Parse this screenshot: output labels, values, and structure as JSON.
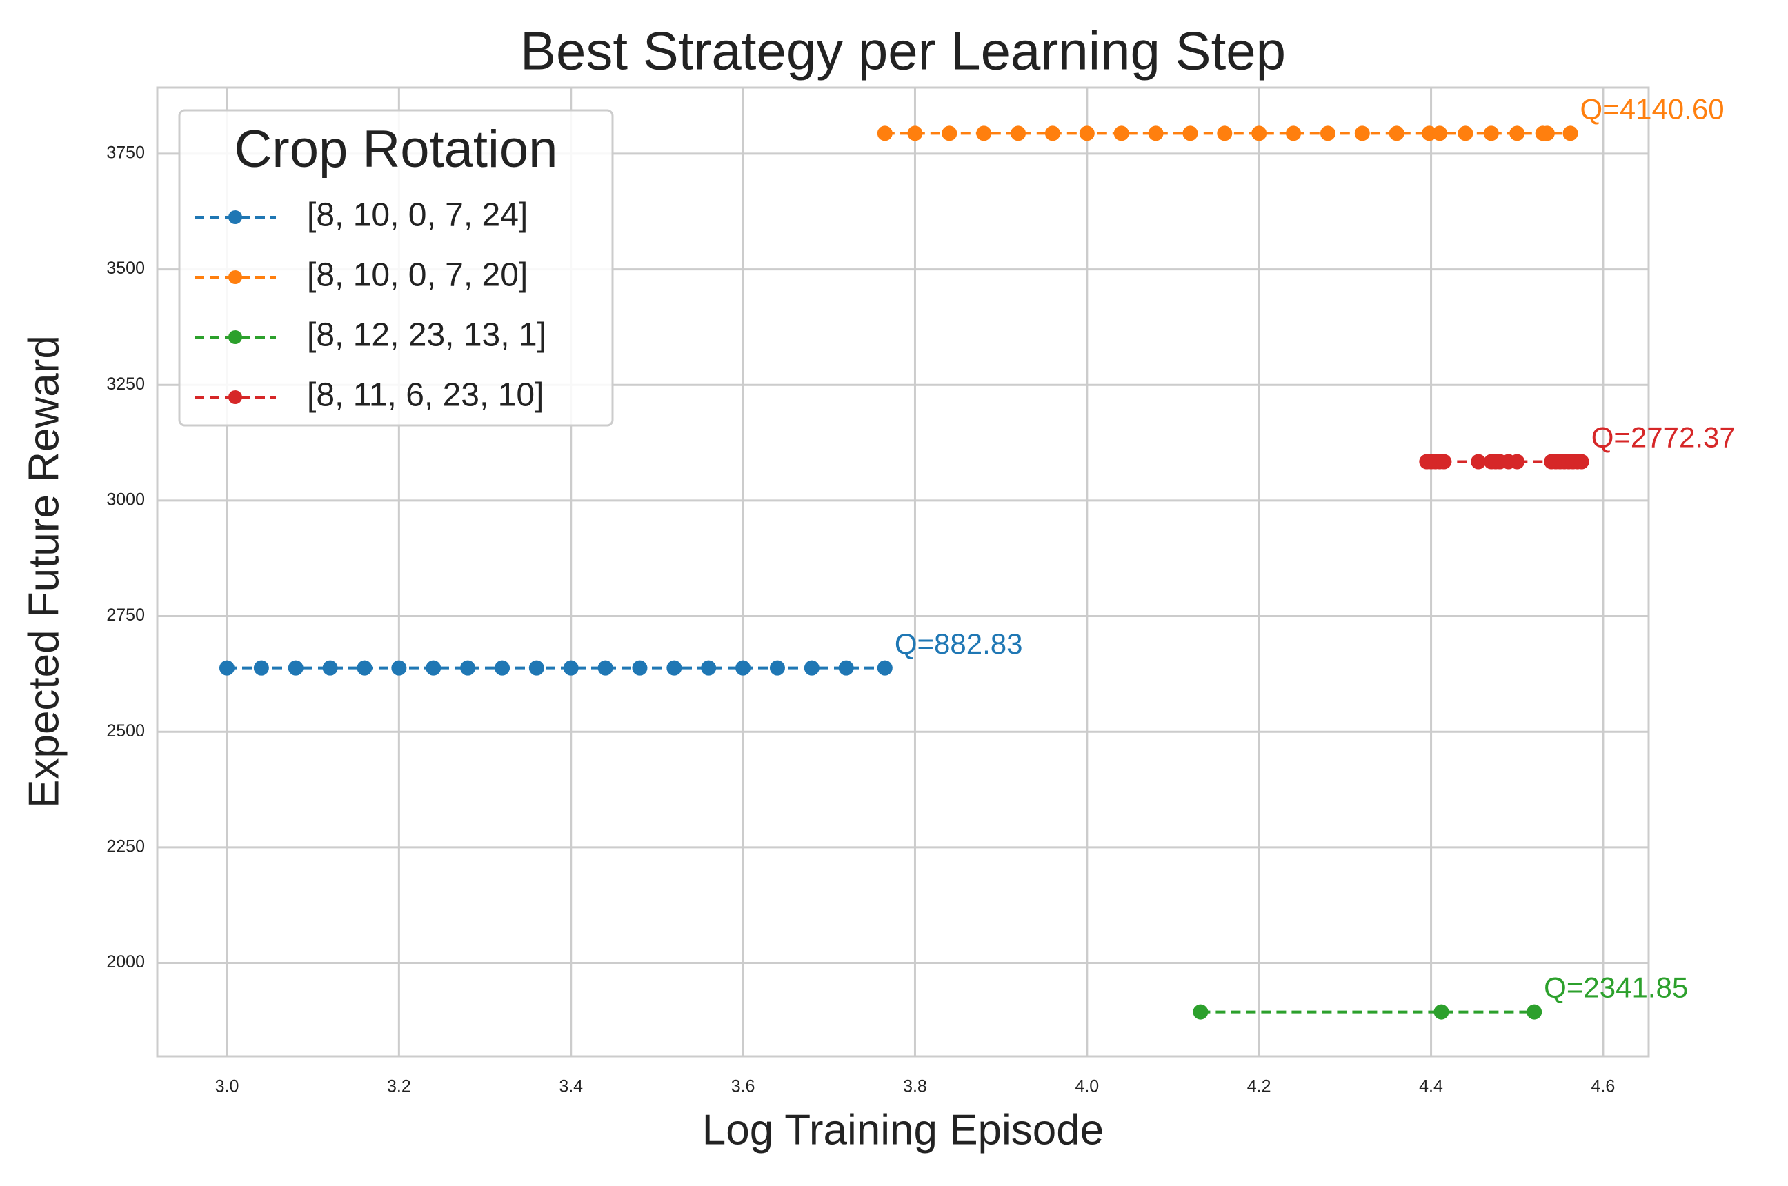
{
  "chart_data": {
    "type": "line",
    "title": "Best Strategy per Learning Step",
    "x_label": "Log Training Episode",
    "y_label": "Expected Future Reward",
    "xlim": [
      2.919,
      4.653
    ],
    "ylim": [
      1798,
      3893
    ],
    "xticks": [
      {
        "value": 3,
        "label": "3.0"
      },
      3.2,
      3.4,
      3.6,
      3.8,
      {
        "value": 4,
        "label": "4.0"
      },
      4.2,
      4.4,
      4.6
    ],
    "yticks": [
      2000,
      2250,
      2500,
      2750,
      3000,
      3250,
      3500,
      3750
    ],
    "grid": true,
    "legend": {
      "title": "Crop Rotation",
      "position": "upper left"
    },
    "series": [
      {
        "name": "[8, 10, 0, 7, 24]",
        "color": "#1f77b4",
        "annotation": "Q=882.83",
        "x": [
          3.0,
          3.04,
          3.08,
          3.12,
          3.16,
          3.2,
          3.24,
          3.28,
          3.32,
          3.36,
          3.4,
          3.44,
          3.48,
          3.52,
          3.56,
          3.6,
          3.64,
          3.68,
          3.72,
          3.765
        ],
        "values": [
          2638,
          2638,
          2638,
          2638,
          2638,
          2638,
          2638,
          2638,
          2638,
          2638,
          2638,
          2638,
          2638,
          2638,
          2638,
          2638,
          2638,
          2638,
          2638,
          2638
        ]
      },
      {
        "name": "[8, 10, 0, 7, 20]",
        "color": "#ff7f0e",
        "annotation": "Q=4140.60",
        "x": [
          3.765,
          3.8,
          3.84,
          3.88,
          3.92,
          3.96,
          4.0,
          4.04,
          4.08,
          4.12,
          4.16,
          4.2,
          4.24,
          4.28,
          4.32,
          4.36,
          4.398,
          4.41,
          4.44,
          4.47,
          4.5,
          4.53,
          4.535,
          4.562
        ],
        "values": [
          3794,
          3794,
          3794,
          3794,
          3794,
          3794,
          3794,
          3794,
          3794,
          3794,
          3794,
          3794,
          3794,
          3794,
          3794,
          3794,
          3794,
          3794,
          3794,
          3794,
          3794,
          3794,
          3794,
          3794
        ]
      },
      {
        "name": "[8, 12, 23, 13, 1]",
        "color": "#2ca02c",
        "annotation": "Q=2341.85",
        "x": [
          4.132,
          4.412,
          4.52
        ],
        "values": [
          1894,
          1894,
          1894
        ]
      },
      {
        "name": "[8, 11, 6, 23, 10]",
        "color": "#d62728",
        "annotation": "Q=2772.37",
        "x": [
          4.395,
          4.4,
          4.405,
          4.41,
          4.415,
          4.455,
          4.47,
          4.475,
          4.48,
          4.49,
          4.5,
          4.54,
          4.545,
          4.55,
          4.555,
          4.56,
          4.565,
          4.57,
          4.575
        ],
        "values": [
          3084,
          3084,
          3084,
          3084,
          3084,
          3084,
          3084,
          3084,
          3084,
          3084,
          3084,
          3084,
          3084,
          3084,
          3084,
          3084,
          3084,
          3084,
          3084
        ]
      }
    ]
  }
}
